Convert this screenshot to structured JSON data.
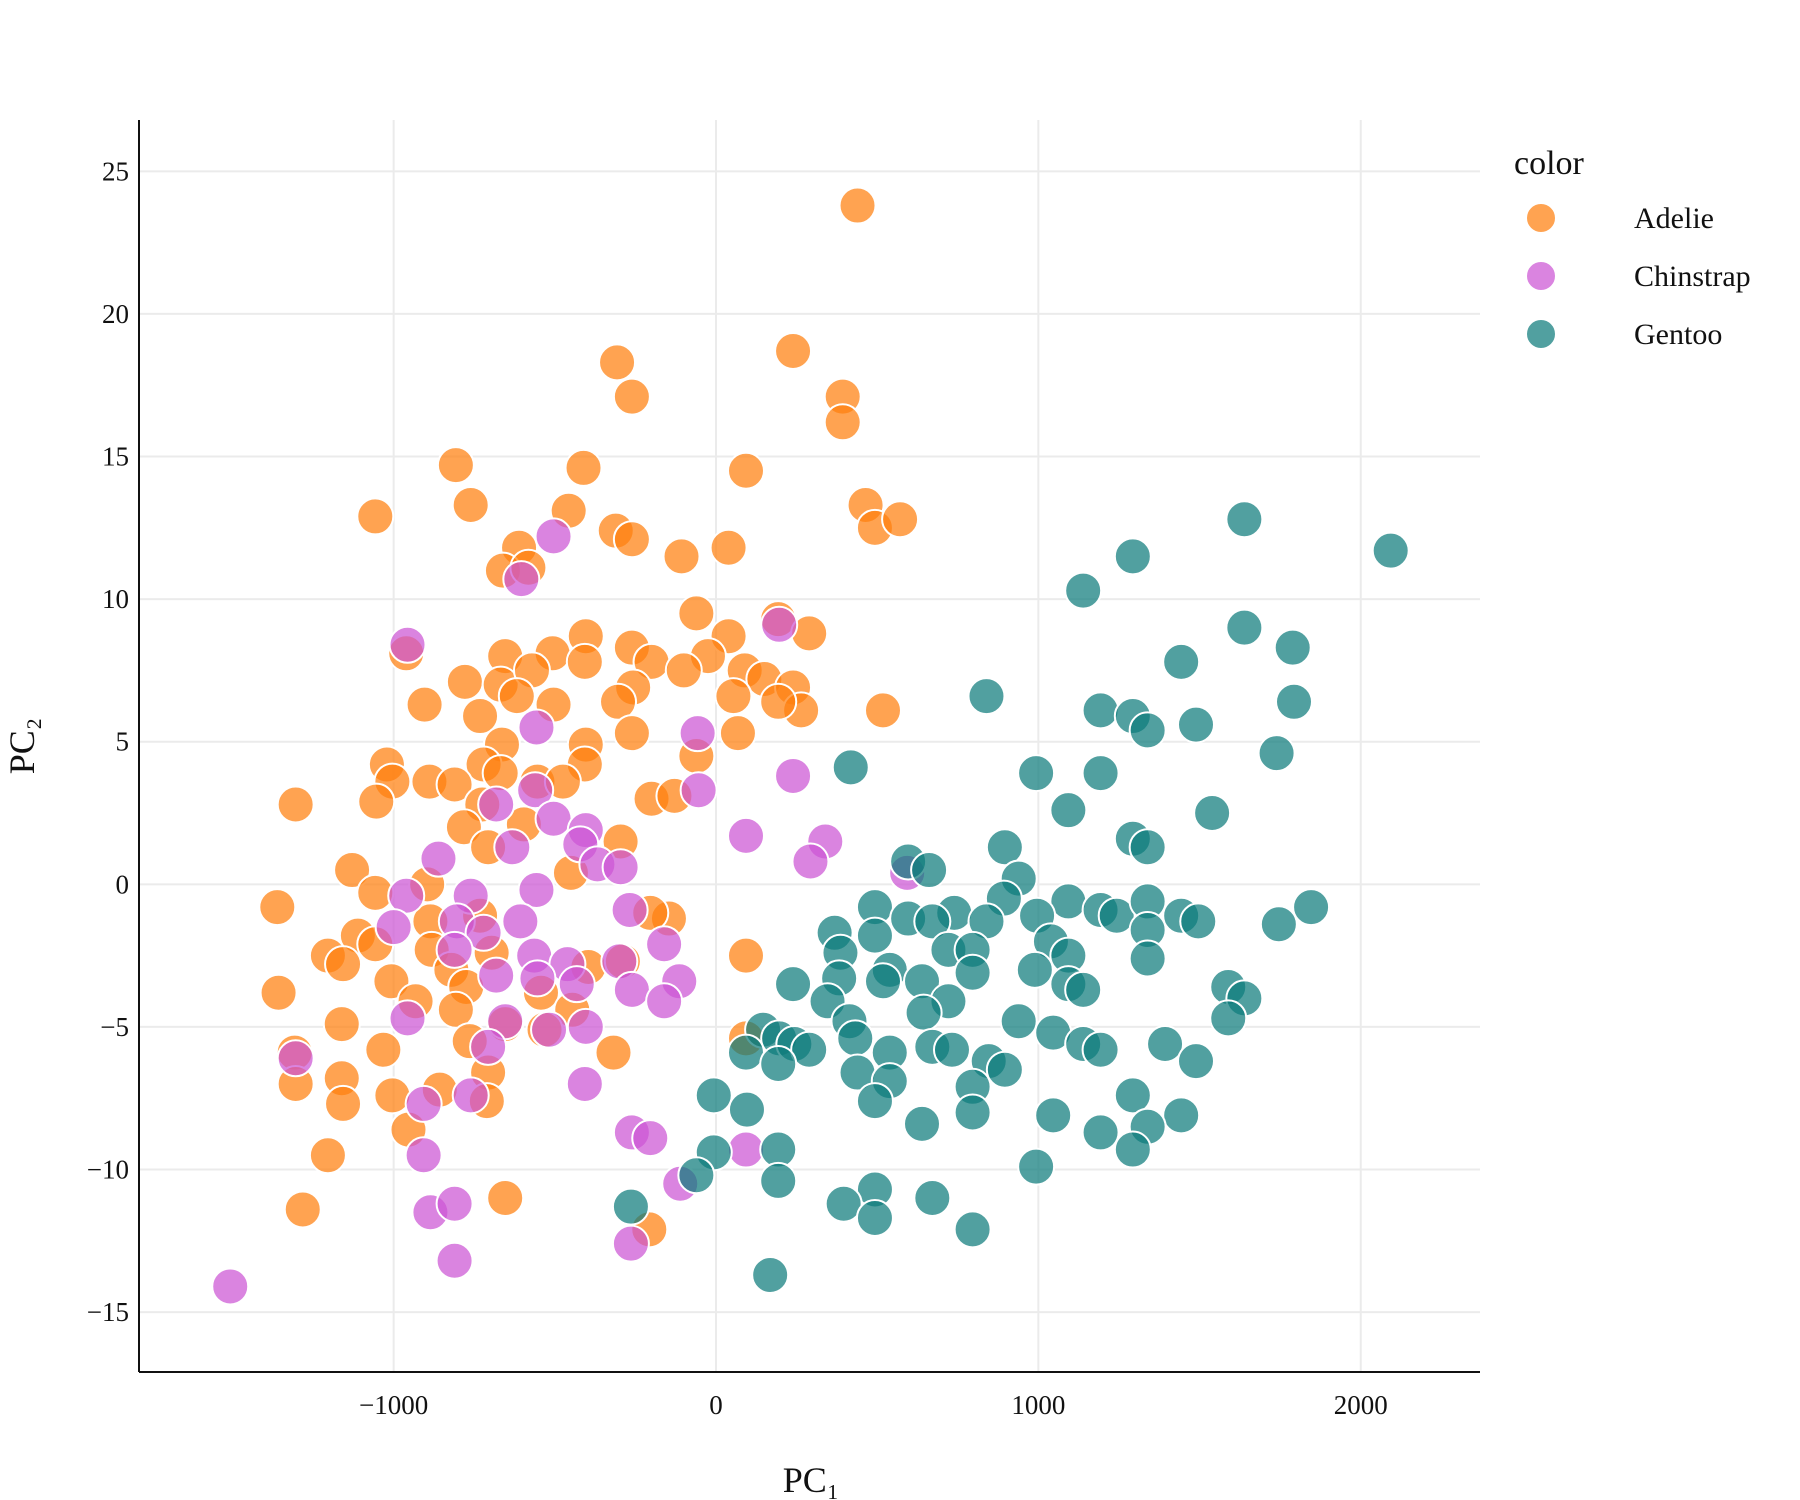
{
  "chart_data": {
    "type": "scatter",
    "xlabel": "PC₁",
    "ylabel": "PC₂",
    "xlim": [
      -1790,
      2370
    ],
    "ylim": [
      -17.1,
      26.8
    ],
    "xticks": [
      -1000,
      0,
      1000,
      2000
    ],
    "yticks": [
      -15,
      -10,
      -5,
      0,
      5,
      10,
      15,
      20,
      25
    ],
    "xtick_labels": [
      "−1000",
      "0",
      "1000",
      "2000"
    ],
    "ytick_labels": [
      "−15",
      "−10",
      "−5",
      "0",
      "5",
      "10",
      "15",
      "20",
      "25"
    ],
    "grid": true,
    "legend": {
      "title": "color",
      "placement": "right"
    },
    "series": [
      {
        "name": "Adelie",
        "color": "#ff7f0e",
        "points": [
          [
            439,
            23.8
          ],
          [
            239,
            18.7
          ],
          [
            -307,
            18.3
          ],
          [
            -261,
            17.1
          ],
          [
            393,
            17.1
          ],
          [
            393,
            16.2
          ],
          [
            -807,
            14.7
          ],
          [
            -411,
            14.6
          ],
          [
            93,
            14.5
          ],
          [
            -1057,
            12.9
          ],
          [
            -761,
            13.3
          ],
          [
            -457,
            13.1
          ],
          [
            464,
            13.3
          ],
          [
            493,
            12.5
          ],
          [
            571,
            12.8
          ],
          [
            -311,
            12.4
          ],
          [
            -261,
            12.1
          ],
          [
            -611,
            11.8
          ],
          [
            -107,
            11.5
          ],
          [
            39,
            11.8
          ],
          [
            -661,
            11.0
          ],
          [
            -582,
            11.1
          ],
          [
            -61,
            9.5
          ],
          [
            193,
            9.3
          ],
          [
            289,
            8.8
          ],
          [
            -404,
            8.7
          ],
          [
            -261,
            8.3
          ],
          [
            39,
            8.7
          ],
          [
            -654,
            8.0
          ],
          [
            -25,
            8.0
          ],
          [
            -961,
            8.1
          ],
          [
            -507,
            8.1
          ],
          [
            -407,
            7.8
          ],
          [
            -779,
            7.1
          ],
          [
            -668,
            7.0
          ],
          [
            -571,
            7.5
          ],
          [
            -200,
            7.8
          ],
          [
            -100,
            7.5
          ],
          [
            89,
            7.5
          ],
          [
            150,
            7.2
          ],
          [
            239,
            6.9
          ],
          [
            -257,
            6.9
          ],
          [
            -304,
            6.4
          ],
          [
            -618,
            6.6
          ],
          [
            -504,
            6.3
          ],
          [
            -904,
            6.3
          ],
          [
            -732,
            5.9
          ],
          [
            54,
            6.6
          ],
          [
            264,
            6.1
          ],
          [
            518,
            6.1
          ],
          [
            193,
            6.4
          ],
          [
            -261,
            5.3
          ],
          [
            -404,
            4.9
          ],
          [
            -664,
            4.9
          ],
          [
            68,
            5.3
          ],
          [
            -61,
            4.5
          ],
          [
            -1021,
            4.2
          ],
          [
            -1004,
            3.6
          ],
          [
            -721,
            4.2
          ],
          [
            -554,
            3.6
          ],
          [
            -407,
            4.2
          ],
          [
            -889,
            3.6
          ],
          [
            -811,
            3.5
          ],
          [
            -668,
            3.9
          ],
          [
            -475,
            3.6
          ],
          [
            -1304,
            2.8
          ],
          [
            -1054,
            2.9
          ],
          [
            -725,
            2.8
          ],
          [
            -200,
            3.0
          ],
          [
            -129,
            3.1
          ],
          [
            -782,
            2.0
          ],
          [
            -596,
            2.1
          ],
          [
            -707,
            1.3
          ],
          [
            -296,
            1.5
          ],
          [
            -450,
            0.4
          ],
          [
            -1129,
            0.5
          ],
          [
            -896,
            0.0
          ],
          [
            -1057,
            -0.3
          ],
          [
            -1361,
            -0.8
          ],
          [
            -732,
            -1.1
          ],
          [
            -886,
            -1.3
          ],
          [
            -146,
            -1.2
          ],
          [
            -204,
            -1.0
          ],
          [
            -1111,
            -1.8
          ],
          [
            -1057,
            -2.1
          ],
          [
            -1204,
            -2.5
          ],
          [
            -1157,
            -2.8
          ],
          [
            -882,
            -2.3
          ],
          [
            -821,
            -3.0
          ],
          [
            93,
            -2.5
          ],
          [
            -696,
            -2.4
          ],
          [
            -396,
            -2.9
          ],
          [
            -289,
            -2.7
          ],
          [
            -1007,
            -3.4
          ],
          [
            -775,
            -3.6
          ],
          [
            -1357,
            -3.8
          ],
          [
            -932,
            -4.1
          ],
          [
            -807,
            -4.4
          ],
          [
            -543,
            -3.8
          ],
          [
            -446,
            -4.4
          ],
          [
            -1161,
            -4.9
          ],
          [
            -654,
            -4.9
          ],
          [
            -764,
            -5.5
          ],
          [
            -532,
            -5.1
          ],
          [
            93,
            -5.4
          ],
          [
            -1032,
            -5.8
          ],
          [
            -318,
            -5.9
          ],
          [
            -1307,
            -5.9
          ],
          [
            -707,
            -6.6
          ],
          [
            -1161,
            -6.8
          ],
          [
            -1304,
            -7.0
          ],
          [
            -1004,
            -7.4
          ],
          [
            -711,
            -7.6
          ],
          [
            -857,
            -7.2
          ],
          [
            -1157,
            -7.7
          ],
          [
            -954,
            -8.6
          ],
          [
            -1204,
            -9.5
          ],
          [
            -207,
            -12.1
          ],
          [
            -1282,
            -11.4
          ],
          [
            -654,
            -11.0
          ]
        ]
      },
      {
        "name": "Chinstrap",
        "color": "#cc55d4",
        "points": [
          [
            -504,
            12.2
          ],
          [
            -604,
            10.7
          ],
          [
            -957,
            8.4
          ],
          [
            196,
            9.1
          ],
          [
            -557,
            5.5
          ],
          [
            -57,
            5.3
          ],
          [
            239,
            3.8
          ],
          [
            -54,
            3.3
          ],
          [
            -561,
            3.3
          ],
          [
            -682,
            2.8
          ],
          [
            -504,
            2.3
          ],
          [
            -404,
            1.9
          ],
          [
            93,
            1.7
          ],
          [
            339,
            1.5
          ],
          [
            -632,
            1.3
          ],
          [
            -421,
            1.4
          ],
          [
            -368,
            0.7
          ],
          [
            293,
            0.8
          ],
          [
            -861,
            0.9
          ],
          [
            -296,
            0.6
          ],
          [
            593,
            0.4
          ],
          [
            -557,
            -0.2
          ],
          [
            -761,
            -0.4
          ],
          [
            -961,
            -0.4
          ],
          [
            -268,
            -0.9
          ],
          [
            -607,
            -1.3
          ],
          [
            -804,
            -1.3
          ],
          [
            -1000,
            -1.5
          ],
          [
            -721,
            -1.7
          ],
          [
            -161,
            -2.1
          ],
          [
            -811,
            -2.3
          ],
          [
            -564,
            -2.5
          ],
          [
            -300,
            -2.7
          ],
          [
            -461,
            -2.8
          ],
          [
            -682,
            -3.2
          ],
          [
            -114,
            -3.4
          ],
          [
            -554,
            -3.3
          ],
          [
            -432,
            -3.5
          ],
          [
            -261,
            -3.7
          ],
          [
            -161,
            -4.1
          ],
          [
            -957,
            -4.7
          ],
          [
            -654,
            -4.8
          ],
          [
            -518,
            -5.1
          ],
          [
            -404,
            -5.0
          ],
          [
            -707,
            -5.7
          ],
          [
            -1304,
            -6.1
          ],
          [
            -407,
            -7.0
          ],
          [
            -761,
            -7.4
          ],
          [
            -907,
            -7.7
          ],
          [
            93,
            -9.3
          ],
          [
            -907,
            -9.5
          ],
          [
            -261,
            -8.7
          ],
          [
            -204,
            -8.9
          ],
          [
            -111,
            -10.5
          ],
          [
            -886,
            -11.5
          ],
          [
            -811,
            -11.2
          ],
          [
            -264,
            -12.6
          ],
          [
            -811,
            -13.2
          ],
          [
            -1507,
            -14.1
          ]
        ]
      },
      {
        "name": "Gentoo",
        "color": "#0e7c7b",
        "points": [
          [
            1639,
            12.8
          ],
          [
            2093,
            11.7
          ],
          [
            1293,
            11.5
          ],
          [
            1139,
            10.3
          ],
          [
            1639,
            9.0
          ],
          [
            1789,
            8.3
          ],
          [
            1443,
            7.8
          ],
          [
            839,
            6.6
          ],
          [
            1193,
            6.1
          ],
          [
            1793,
            6.4
          ],
          [
            1293,
            5.9
          ],
          [
            1339,
            5.4
          ],
          [
            1489,
            5.6
          ],
          [
            418,
            4.1
          ],
          [
            993,
            3.9
          ],
          [
            1193,
            3.9
          ],
          [
            1739,
            4.6
          ],
          [
            1093,
            2.6
          ],
          [
            1539,
            2.5
          ],
          [
            1293,
            1.6
          ],
          [
            1339,
            1.3
          ],
          [
            896,
            1.3
          ],
          [
            596,
            0.8
          ],
          [
            661,
            0.5
          ],
          [
            939,
            0.2
          ],
          [
            893,
            -0.5
          ],
          [
            1093,
            -0.6
          ],
          [
            493,
            -0.8
          ],
          [
            596,
            -1.2
          ],
          [
            739,
            -1.0
          ],
          [
            671,
            -1.3
          ],
          [
            839,
            -1.3
          ],
          [
            996,
            -1.1
          ],
          [
            1193,
            -0.9
          ],
          [
            1243,
            -1.1
          ],
          [
            1339,
            -0.6
          ],
          [
            1443,
            -1.1
          ],
          [
            1496,
            -1.3
          ],
          [
            1846,
            -0.8
          ],
          [
            1746,
            -1.4
          ],
          [
            368,
            -1.7
          ],
          [
            493,
            -1.8
          ],
          [
            1339,
            -1.6
          ],
          [
            1039,
            -2.0
          ],
          [
            386,
            -2.4
          ],
          [
            721,
            -2.3
          ],
          [
            796,
            -2.3
          ],
          [
            1093,
            -2.5
          ],
          [
            1339,
            -2.6
          ],
          [
            539,
            -3.0
          ],
          [
            796,
            -3.1
          ],
          [
            989,
            -3.0
          ],
          [
            382,
            -3.3
          ],
          [
            518,
            -3.4
          ],
          [
            639,
            -3.4
          ],
          [
            1093,
            -3.5
          ],
          [
            1139,
            -3.7
          ],
          [
            239,
            -3.5
          ],
          [
            1589,
            -3.6
          ],
          [
            1639,
            -4.0
          ],
          [
            346,
            -4.1
          ],
          [
            721,
            -4.1
          ],
          [
            644,
            -4.5
          ],
          [
            414,
            -4.8
          ],
          [
            939,
            -4.8
          ],
          [
            1589,
            -4.7
          ],
          [
            146,
            -5.1
          ],
          [
            1046,
            -5.2
          ],
          [
            432,
            -5.4
          ],
          [
            196,
            -5.4
          ],
          [
            243,
            -5.6
          ],
          [
            289,
            -5.8
          ],
          [
            93,
            -5.9
          ],
          [
            671,
            -5.7
          ],
          [
            732,
            -5.8
          ],
          [
            1139,
            -5.6
          ],
          [
            1193,
            -5.8
          ],
          [
            1393,
            -5.6
          ],
          [
            1489,
            -6.2
          ],
          [
            539,
            -5.9
          ],
          [
            846,
            -6.2
          ],
          [
            896,
            -6.5
          ],
          [
            439,
            -6.6
          ],
          [
            539,
            -6.9
          ],
          [
            193,
            -6.3
          ],
          [
            796,
            -7.1
          ],
          [
            -7,
            -7.4
          ],
          [
            493,
            -7.6
          ],
          [
            1293,
            -7.4
          ],
          [
            96,
            -7.9
          ],
          [
            639,
            -8.4
          ],
          [
            796,
            -8.0
          ],
          [
            1046,
            -8.1
          ],
          [
            1443,
            -8.1
          ],
          [
            1339,
            -8.5
          ],
          [
            1193,
            -8.7
          ],
          [
            1293,
            -9.3
          ],
          [
            -7,
            -9.4
          ],
          [
            193,
            -9.3
          ],
          [
            993,
            -9.9
          ],
          [
            -61,
            -10.2
          ],
          [
            193,
            -10.4
          ],
          [
            493,
            -10.7
          ],
          [
            -264,
            -11.3
          ],
          [
            396,
            -11.2
          ],
          [
            671,
            -11.0
          ],
          [
            493,
            -11.7
          ],
          [
            796,
            -12.1
          ],
          [
            168,
            -13.7
          ]
        ]
      }
    ]
  }
}
